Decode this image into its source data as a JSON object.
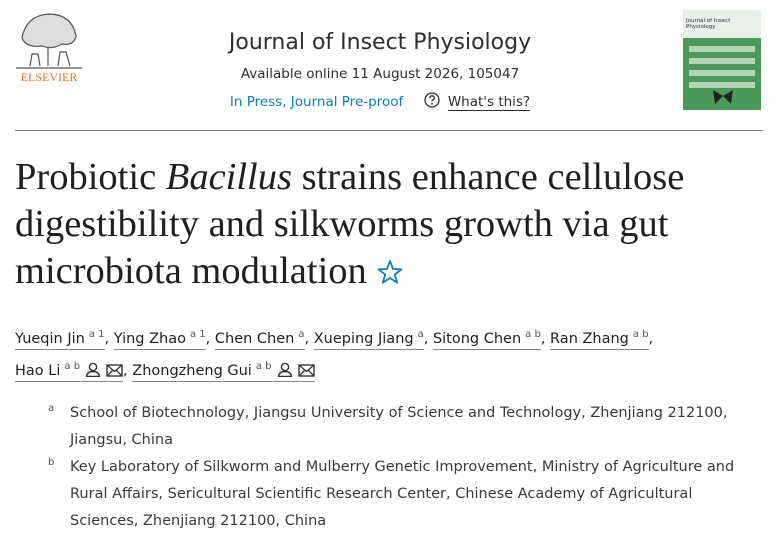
{
  "header": {
    "publisher": "ELSEVIER",
    "journal": "Journal of Insect Physiology",
    "available": "Available online 11 August 2026, 105047",
    "status": "In Press, Journal Pre-proof",
    "help": "What's this?",
    "cover_title": "Journal of Insect Physiology"
  },
  "article": {
    "title_parts": [
      {
        "text": "Probiotic "
      },
      {
        "text": "Bacillus",
        "italic": true
      },
      {
        "text": " strains enhance cellulose digestibility and silkworms growth via gut microbiota modulation"
      }
    ],
    "separator": ",",
    "authors": [
      {
        "name": "Yueqin Jin",
        "sup": "a 1"
      },
      {
        "name": "Ying Zhao",
        "sup": "a 1"
      },
      {
        "name": "Chen Chen",
        "sup": "a"
      },
      {
        "name": "Xueping Jiang",
        "sup": "a"
      },
      {
        "name": "Sitong Chen",
        "sup": "a b"
      },
      {
        "name": "Ran Zhang",
        "sup": "a b"
      },
      {
        "name": "Hao Li",
        "sup": "a b",
        "corresponding": true
      },
      {
        "name": "Zhongzheng Gui",
        "sup": "a b",
        "corresponding": true
      }
    ],
    "affiliations": [
      {
        "label": "a",
        "text": "School of Biotechnology, Jiangsu University of Science and Technology, Zhenjiang 212100, Jiangsu, China"
      },
      {
        "label": "b",
        "text": "Key Laboratory of Silkworm and Mulberry Genetic Improvement, Ministry of Agriculture and Rural Affairs, Sericultural Scientific Research Center, Chinese Academy of Agricultural Sciences, Zhenjiang 212100, China"
      }
    ]
  }
}
